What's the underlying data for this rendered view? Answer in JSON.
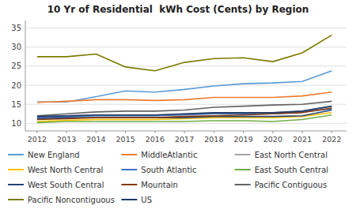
{
  "chart_data": {
    "type": "line",
    "title": "10 Yr of Residential  kWh Cost (Cents) by Region",
    "x": [
      2012,
      2013,
      2014,
      2015,
      2016,
      2017,
      2018,
      2019,
      2020,
      2021,
      2022
    ],
    "xlim": [
      2011.6,
      2022.5
    ],
    "xticks": [
      2012,
      2013,
      2014,
      2015,
      2016,
      2017,
      2018,
      2019,
      2020,
      2021,
      2022
    ],
    "ylim": [
      8,
      37
    ],
    "yticks": [
      10,
      15,
      20,
      25,
      30,
      35
    ],
    "grid": true,
    "legend": "bottom",
    "series": [
      {
        "name": "New England",
        "color": "#5B9BD5",
        "values": [
          15.6,
          15.6,
          17.0,
          18.5,
          18.2,
          18.9,
          19.8,
          20.4,
          20.6,
          21.0,
          23.8
        ]
      },
      {
        "name": "MiddleAtlantic",
        "color": "#ED7D31",
        "values": [
          15.5,
          15.8,
          16.2,
          16.2,
          16.0,
          16.2,
          16.8,
          16.8,
          16.8,
          17.2,
          18.2
        ]
      },
      {
        "name": "East North Central",
        "color": "#A5A5A5",
        "values": [
          11.8,
          12.0,
          12.2,
          12.2,
          12.2,
          12.4,
          12.7,
          12.8,
          12.8,
          13.2,
          14.5
        ]
      },
      {
        "name": "West North Central",
        "color": "#FFC000",
        "values": [
          10.5,
          10.8,
          11.0,
          11.0,
          11.0,
          11.2,
          11.5,
          11.5,
          11.5,
          11.8,
          12.8
        ]
      },
      {
        "name": "South Atlantic",
        "color": "#4472C4",
        "values": [
          11.5,
          11.8,
          12.0,
          12.0,
          12.0,
          12.2,
          12.5,
          12.5,
          12.5,
          13.0,
          13.8
        ]
      },
      {
        "name": "East South Central",
        "color": "#70AD47",
        "values": [
          10.2,
          10.5,
          10.5,
          10.5,
          10.5,
          10.5,
          10.7,
          10.7,
          10.5,
          11.0,
          12.2
        ]
      },
      {
        "name": "West South Central",
        "color": "#264478",
        "values": [
          11.2,
          11.5,
          11.5,
          11.5,
          11.5,
          11.5,
          11.8,
          11.8,
          11.8,
          12.0,
          13.5
        ]
      },
      {
        "name": "Mountain",
        "color": "#843C0C",
        "values": [
          11.0,
          11.2,
          11.5,
          11.5,
          11.5,
          11.8,
          12.0,
          12.2,
          12.5,
          12.8,
          14.0
        ]
      },
      {
        "name": "Pacific Contiguous",
        "color": "#636363",
        "values": [
          12.0,
          12.5,
          13.0,
          13.2,
          13.2,
          13.5,
          14.2,
          14.5,
          14.8,
          15.0,
          15.8
        ]
      },
      {
        "name": "Pacific Noncontiguous",
        "color": "#7B7B00",
        "values": [
          27.5,
          27.5,
          28.2,
          24.8,
          23.8,
          26.0,
          27.0,
          27.2,
          26.2,
          28.5,
          33.2
        ]
      },
      {
        "name": "US",
        "color": "#1F3864",
        "values": [
          11.8,
          12.0,
          12.2,
          12.2,
          12.2,
          12.5,
          12.8,
          12.8,
          12.8,
          13.2,
          14.5
        ]
      }
    ]
  }
}
